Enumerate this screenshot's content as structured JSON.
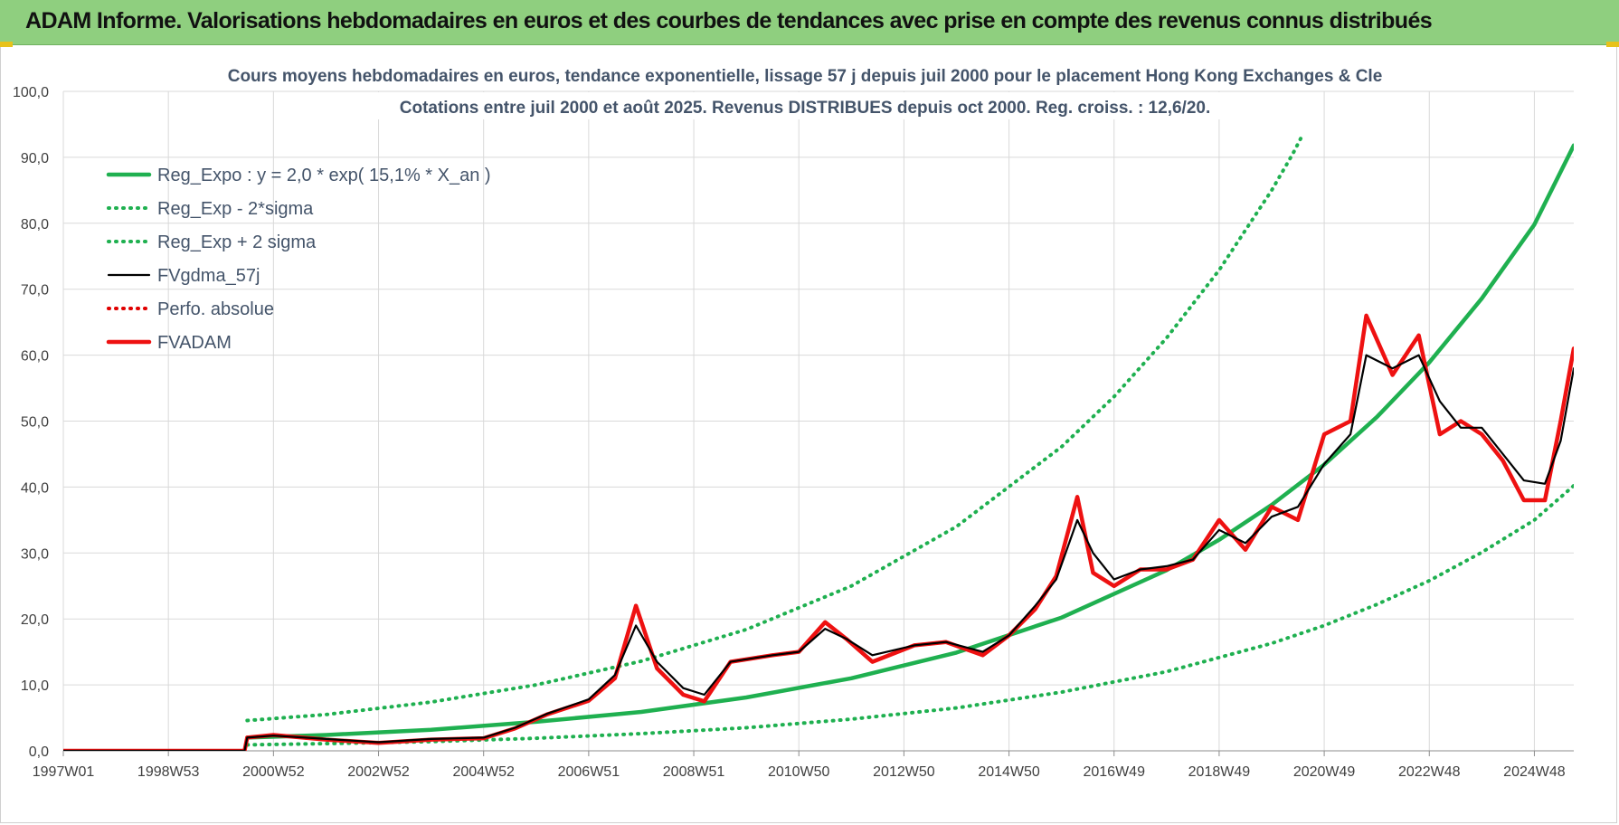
{
  "banner": {
    "title": "ADAM Informe. Valorisations hebdomadaires en euros et des courbes de tendances avec prise en compte des revenus connus distribués"
  },
  "colors": {
    "banner_bg": "#8fcf7f",
    "trend": "#1fb050",
    "sigma_bands": "#1fb050",
    "moving_average": "#000000",
    "perf_absolue": "#e00000",
    "fvadam": "#ee1111",
    "grid": "#d9d9d9",
    "axis_text": "#404040"
  },
  "chart_data": {
    "type": "line",
    "title": "Cours moyens hebdomadaires en euros, tendance exponentielle, lissage 57 j depuis juil 2000 pour le placement Hong Kong Exchanges & Cle",
    "subtitle": "Cotations entre juil 2000 et août 2025. Revenus DISTRIBUES depuis oct 2000. Reg. croiss. : 12,6/20.",
    "xlabel": "",
    "ylabel": "",
    "x_start_year": 1997.0,
    "x_end_year": 2025.75,
    "x_ticks": [
      {
        "label": "1997W01",
        "year": 1997.0
      },
      {
        "label": "1998W53",
        "year": 1999.0
      },
      {
        "label": "2000W52",
        "year": 2001.0
      },
      {
        "label": "2002W52",
        "year": 2003.0
      },
      {
        "label": "2004W52",
        "year": 2005.0
      },
      {
        "label": "2006W51",
        "year": 2007.0
      },
      {
        "label": "2008W51",
        "year": 2009.0
      },
      {
        "label": "2010W50",
        "year": 2011.0
      },
      {
        "label": "2012W50",
        "year": 2013.0
      },
      {
        "label": "2014W50",
        "year": 2015.0
      },
      {
        "label": "2016W49",
        "year": 2017.0
      },
      {
        "label": "2018W49",
        "year": 2019.0
      },
      {
        "label": "2020W49",
        "year": 2021.0
      },
      {
        "label": "2022W48",
        "year": 2023.0
      },
      {
        "label": "2024W48",
        "year": 2025.0
      }
    ],
    "ylim": [
      0,
      100
    ],
    "y_ticks": [
      "0,0",
      "10,0",
      "20,0",
      "30,0",
      "40,0",
      "50,0",
      "60,0",
      "70,0",
      "80,0",
      "90,0",
      "100,0"
    ],
    "grid": true,
    "legend_position": "top-left",
    "series": [
      {
        "name": "Reg_Expo : y = 2,0 * exp( 15,1% *  X_an )",
        "style": "solid-thick",
        "color": "#1fb050",
        "points": [
          [
            2000.5,
            2.0
          ],
          [
            2002,
            2.4
          ],
          [
            2004,
            3.2
          ],
          [
            2006,
            4.4
          ],
          [
            2008,
            5.9
          ],
          [
            2010,
            8.1
          ],
          [
            2012,
            11.0
          ],
          [
            2014,
            14.9
          ],
          [
            2016,
            20.2
          ],
          [
            2018,
            27.4
          ],
          [
            2019,
            32.0
          ],
          [
            2020,
            37.3
          ],
          [
            2021,
            43.4
          ],
          [
            2022,
            50.6
          ],
          [
            2023,
            58.9
          ],
          [
            2024,
            68.6
          ],
          [
            2025,
            79.8
          ],
          [
            2025.75,
            91.8
          ]
        ]
      },
      {
        "name": "Reg_Exp - 2*sigma",
        "style": "dotted",
        "color": "#1fb050",
        "points": [
          [
            2000.5,
            0.9
          ],
          [
            2002,
            1.1
          ],
          [
            2004,
            1.4
          ],
          [
            2006,
            1.9
          ],
          [
            2008,
            2.6
          ],
          [
            2010,
            3.5
          ],
          [
            2012,
            4.8
          ],
          [
            2014,
            6.5
          ],
          [
            2016,
            8.9
          ],
          [
            2018,
            12.0
          ],
          [
            2020,
            16.3
          ],
          [
            2021,
            19.0
          ],
          [
            2022,
            22.2
          ],
          [
            2023,
            25.8
          ],
          [
            2024,
            30.1
          ],
          [
            2025,
            35.0
          ],
          [
            2025.75,
            40.2
          ]
        ]
      },
      {
        "name": "Reg_Exp + 2 sigma",
        "style": "dotted",
        "color": "#1fb050",
        "points": [
          [
            2000.5,
            4.6
          ],
          [
            2002,
            5.5
          ],
          [
            2004,
            7.4
          ],
          [
            2006,
            10.0
          ],
          [
            2008,
            13.6
          ],
          [
            2010,
            18.4
          ],
          [
            2012,
            25.0
          ],
          [
            2014,
            34.0
          ],
          [
            2016,
            46.1
          ],
          [
            2017,
            53.7
          ],
          [
            2018,
            62.6
          ],
          [
            2019,
            72.9
          ],
          [
            2020,
            85.0
          ],
          [
            2020.4,
            90.5
          ],
          [
            2020.6,
            93.6
          ]
        ]
      },
      {
        "name": "FVgdma_57j",
        "style": "solid",
        "color": "#000000",
        "points": [
          [
            1997.0,
            0
          ],
          [
            2000.45,
            0
          ],
          [
            2000.5,
            2.0
          ],
          [
            2001.0,
            2.3
          ],
          [
            2002.0,
            1.8
          ],
          [
            2003.0,
            1.3
          ],
          [
            2004.0,
            1.8
          ],
          [
            2005.0,
            2.0
          ],
          [
            2005.6,
            3.5
          ],
          [
            2006.2,
            5.6
          ],
          [
            2007.0,
            7.8
          ],
          [
            2007.5,
            11.5
          ],
          [
            2007.9,
            19.0
          ],
          [
            2008.3,
            13.5
          ],
          [
            2008.8,
            9.5
          ],
          [
            2009.2,
            8.5
          ],
          [
            2009.7,
            13.5
          ],
          [
            2010.5,
            14.5
          ],
          [
            2011.0,
            15.0
          ],
          [
            2011.5,
            18.5
          ],
          [
            2011.9,
            17.0
          ],
          [
            2012.4,
            14.5
          ],
          [
            2013.2,
            16.0
          ],
          [
            2013.8,
            16.5
          ],
          [
            2014.5,
            15.0
          ],
          [
            2015.0,
            17.5
          ],
          [
            2015.5,
            22.0
          ],
          [
            2015.9,
            26.0
          ],
          [
            2016.3,
            35.0
          ],
          [
            2016.6,
            30.0
          ],
          [
            2017.0,
            26.0
          ],
          [
            2017.5,
            27.5
          ],
          [
            2018.0,
            28.0
          ],
          [
            2018.5,
            29.0
          ],
          [
            2019.0,
            33.5
          ],
          [
            2019.5,
            31.5
          ],
          [
            2020.0,
            35.5
          ],
          [
            2020.5,
            37.0
          ],
          [
            2021.0,
            43.5
          ],
          [
            2021.5,
            48.0
          ],
          [
            2021.8,
            60.0
          ],
          [
            2022.3,
            58.0
          ],
          [
            2022.8,
            60.0
          ],
          [
            2023.2,
            53.0
          ],
          [
            2023.6,
            49.0
          ],
          [
            2024.0,
            49.0
          ],
          [
            2024.4,
            45.0
          ],
          [
            2024.8,
            41.0
          ],
          [
            2025.2,
            40.5
          ],
          [
            2025.5,
            47.0
          ],
          [
            2025.75,
            58.0
          ]
        ]
      },
      {
        "name": "Perfo. absolue",
        "style": "dotted",
        "color": "#e00000",
        "points": [
          [
            1997.0,
            0
          ],
          [
            2000.45,
            0
          ],
          [
            2000.5,
            2.0
          ],
          [
            2001.0,
            2.4
          ],
          [
            2002.0,
            1.7
          ],
          [
            2003.0,
            1.2
          ],
          [
            2004.0,
            1.7
          ],
          [
            2005.0,
            1.9
          ],
          [
            2005.6,
            3.4
          ],
          [
            2006.2,
            5.5
          ],
          [
            2007.0,
            7.6
          ],
          [
            2007.5,
            11.0
          ],
          [
            2007.9,
            22.0
          ],
          [
            2008.3,
            12.5
          ],
          [
            2008.8,
            8.5
          ],
          [
            2009.2,
            7.5
          ],
          [
            2009.7,
            13.5
          ],
          [
            2010.5,
            14.5
          ],
          [
            2011.0,
            15.0
          ],
          [
            2011.5,
            19.5
          ],
          [
            2011.9,
            17.0
          ],
          [
            2012.4,
            13.5
          ],
          [
            2013.2,
            16.0
          ],
          [
            2013.8,
            16.5
          ],
          [
            2014.5,
            14.5
          ],
          [
            2015.0,
            17.5
          ],
          [
            2015.5,
            21.5
          ],
          [
            2015.9,
            26.5
          ],
          [
            2016.3,
            38.5
          ],
          [
            2016.6,
            27.0
          ],
          [
            2017.0,
            25.0
          ],
          [
            2017.5,
            27.5
          ],
          [
            2018.0,
            27.5
          ],
          [
            2018.5,
            29.0
          ],
          [
            2019.0,
            35.0
          ],
          [
            2019.5,
            30.5
          ],
          [
            2020.0,
            37.0
          ],
          [
            2020.5,
            35.0
          ],
          [
            2021.0,
            48.0
          ],
          [
            2021.5,
            50.0
          ],
          [
            2021.8,
            66.0
          ],
          [
            2022.3,
            57.0
          ],
          [
            2022.8,
            63.0
          ],
          [
            2023.2,
            48.0
          ],
          [
            2023.6,
            50.0
          ],
          [
            2024.0,
            48.0
          ],
          [
            2024.4,
            44.0
          ],
          [
            2024.8,
            38.0
          ],
          [
            2025.2,
            38.0
          ],
          [
            2025.5,
            50.0
          ],
          [
            2025.75,
            61.0
          ]
        ]
      },
      {
        "name": "FVADAM",
        "style": "solid-thick",
        "color": "#ee1111",
        "points": [
          [
            1997.0,
            0
          ],
          [
            2000.45,
            0
          ],
          [
            2000.5,
            2.0
          ],
          [
            2001.0,
            2.4
          ],
          [
            2002.0,
            1.7
          ],
          [
            2003.0,
            1.2
          ],
          [
            2004.0,
            1.7
          ],
          [
            2005.0,
            1.9
          ],
          [
            2005.6,
            3.4
          ],
          [
            2006.2,
            5.5
          ],
          [
            2007.0,
            7.6
          ],
          [
            2007.5,
            11.0
          ],
          [
            2007.9,
            22.0
          ],
          [
            2008.3,
            12.5
          ],
          [
            2008.8,
            8.5
          ],
          [
            2009.2,
            7.5
          ],
          [
            2009.7,
            13.5
          ],
          [
            2010.5,
            14.5
          ],
          [
            2011.0,
            15.0
          ],
          [
            2011.5,
            19.5
          ],
          [
            2011.9,
            17.0
          ],
          [
            2012.4,
            13.5
          ],
          [
            2013.2,
            16.0
          ],
          [
            2013.8,
            16.5
          ],
          [
            2014.5,
            14.5
          ],
          [
            2015.0,
            17.5
          ],
          [
            2015.5,
            21.5
          ],
          [
            2015.9,
            26.5
          ],
          [
            2016.3,
            38.5
          ],
          [
            2016.6,
            27.0
          ],
          [
            2017.0,
            25.0
          ],
          [
            2017.5,
            27.5
          ],
          [
            2018.0,
            27.5
          ],
          [
            2018.5,
            29.0
          ],
          [
            2019.0,
            35.0
          ],
          [
            2019.5,
            30.5
          ],
          [
            2020.0,
            37.0
          ],
          [
            2020.5,
            35.0
          ],
          [
            2021.0,
            48.0
          ],
          [
            2021.5,
            50.0
          ],
          [
            2021.8,
            66.0
          ],
          [
            2022.3,
            57.0
          ],
          [
            2022.8,
            63.0
          ],
          [
            2023.2,
            48.0
          ],
          [
            2023.6,
            50.0
          ],
          [
            2024.0,
            48.0
          ],
          [
            2024.4,
            44.0
          ],
          [
            2024.8,
            38.0
          ],
          [
            2025.2,
            38.0
          ],
          [
            2025.5,
            50.0
          ],
          [
            2025.75,
            61.0
          ]
        ]
      }
    ]
  }
}
